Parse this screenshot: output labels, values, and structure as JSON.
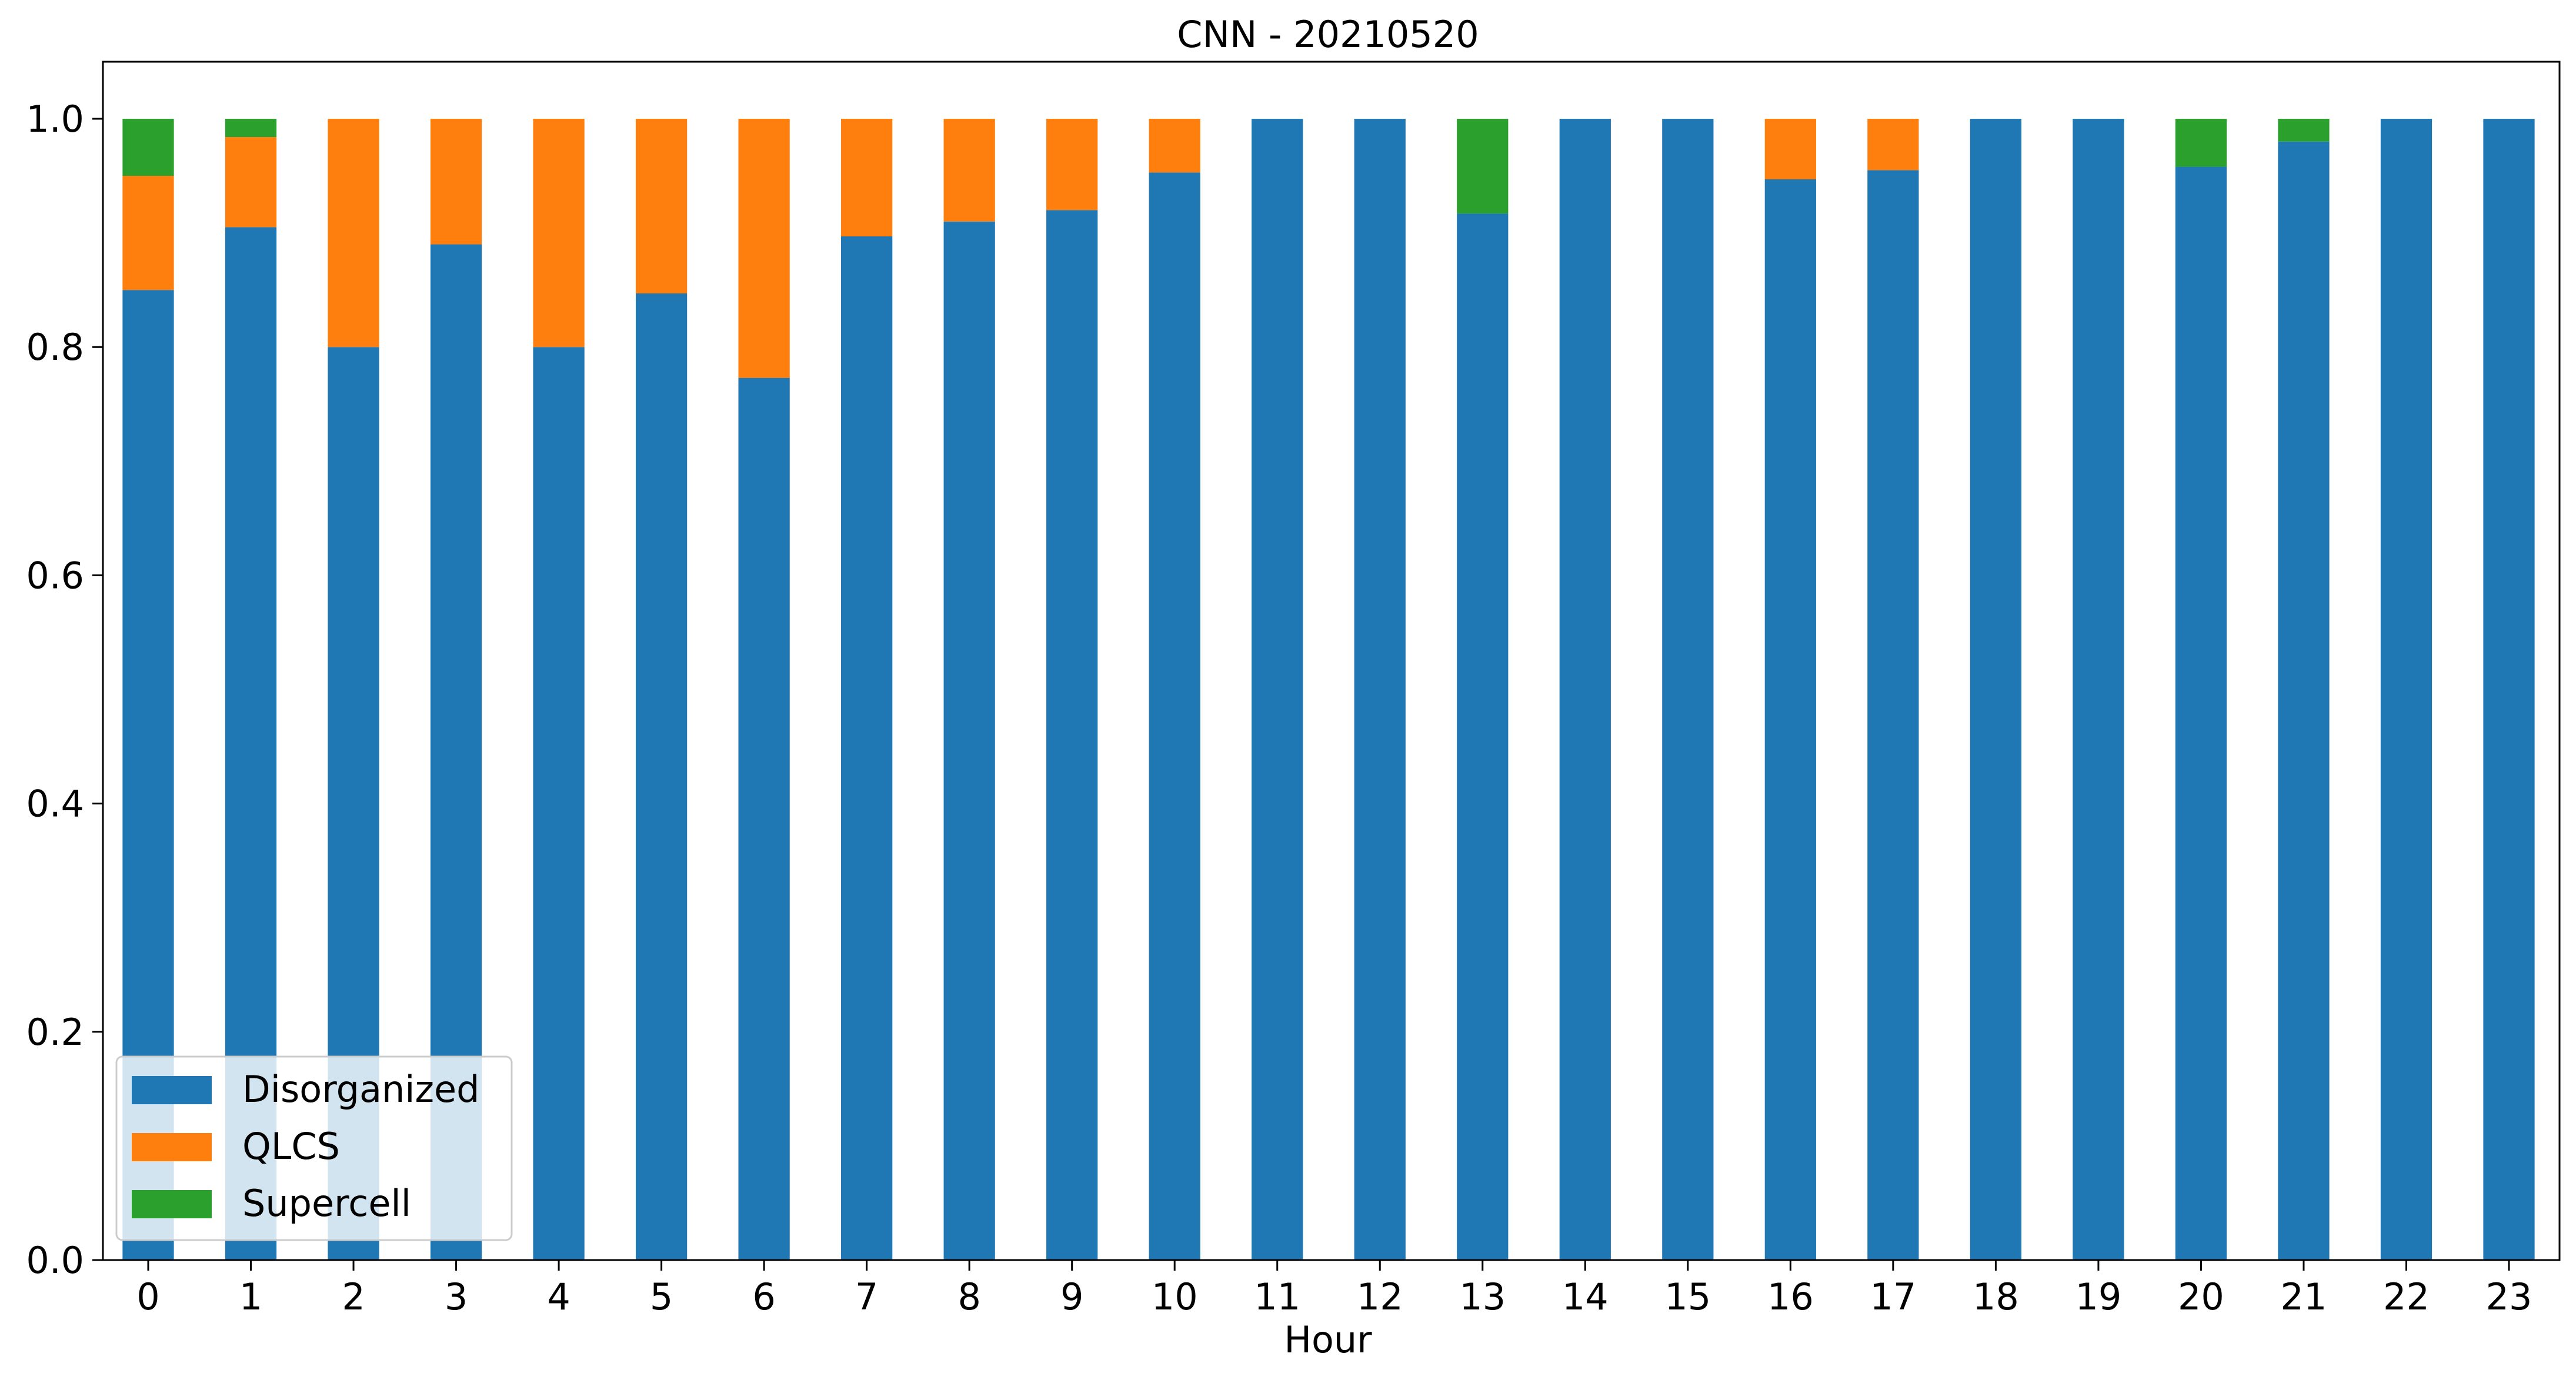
{
  "chart_data": {
    "type": "bar",
    "stacked": true,
    "title": "CNN - 20210520",
    "xlabel": "Hour",
    "ylabel": "",
    "ylim": [
      0,
      1.05
    ],
    "yticks": [
      "0.0",
      "0.2",
      "0.4",
      "0.6",
      "0.8",
      "1.0"
    ],
    "categories": [
      "0",
      "1",
      "2",
      "3",
      "4",
      "5",
      "6",
      "7",
      "8",
      "9",
      "10",
      "11",
      "12",
      "13",
      "14",
      "15",
      "16",
      "17",
      "18",
      "19",
      "20",
      "21",
      "22",
      "23"
    ],
    "series": [
      {
        "name": "Disorganized",
        "color": "#1f77b4",
        "values": [
          0.85,
          0.905,
          0.8,
          0.89,
          0.8,
          0.847,
          0.773,
          0.897,
          0.91,
          0.92,
          0.953,
          1.0,
          1.0,
          0.917,
          1.0,
          1.0,
          0.947,
          0.955,
          1.0,
          1.0,
          0.958,
          0.98,
          1.0,
          1.0
        ]
      },
      {
        "name": "QLCS",
        "color": "#ff7f0e",
        "values": [
          0.1,
          0.079,
          0.2,
          0.11,
          0.2,
          0.153,
          0.227,
          0.103,
          0.09,
          0.08,
          0.047,
          0,
          0,
          0,
          0,
          0,
          0.053,
          0.045,
          0,
          0,
          0,
          0,
          0,
          0
        ]
      },
      {
        "name": "Supercell",
        "color": "#2ca02c",
        "values": [
          0.05,
          0.016,
          0,
          0,
          0,
          0,
          0,
          0,
          0,
          0,
          0,
          0,
          0,
          0.083,
          0,
          0,
          0,
          0,
          0,
          0,
          0.042,
          0.02,
          0,
          0
        ]
      }
    ],
    "grid": false,
    "legend_position": "lower-left"
  }
}
